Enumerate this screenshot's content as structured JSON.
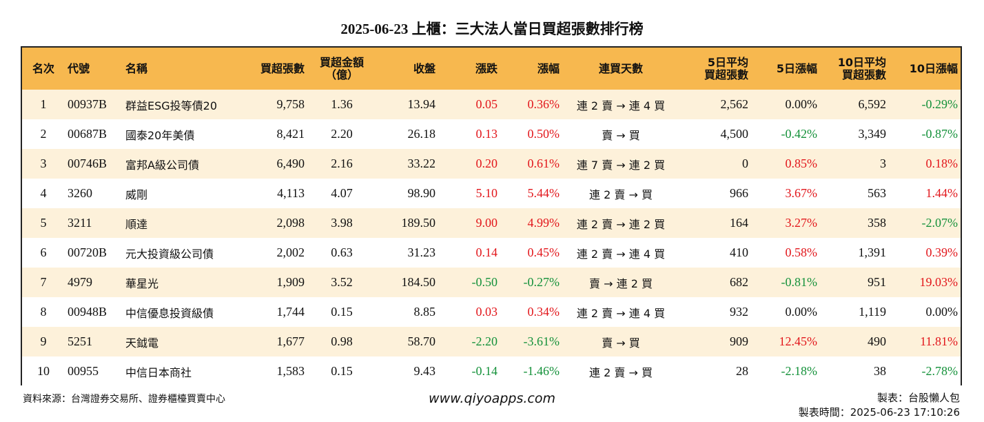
{
  "title": "2025-06-23 上櫃：三大法人當日買超張數排行榜",
  "headers": {
    "rank": "名次",
    "code": "代號",
    "name": "名稱",
    "buy_lots": "買超張數",
    "buy_amount_1": "買超金額",
    "buy_amount_2": "（億）",
    "close": "收盤",
    "change": "漲跌",
    "pct": "漲幅",
    "streak": "連買天數",
    "avg5_1": "5日平均",
    "avg5_2": "買超張數",
    "pct5": "5日漲幅",
    "avg10_1": "10日平均",
    "avg10_2": "買超張數",
    "pct10": "10日漲幅"
  },
  "colors": {
    "header_bg": "#f7b84f",
    "row_stripe": "#fdf1da",
    "up": "#e2161b",
    "down": "#14913a"
  },
  "rows": [
    {
      "rank": "1",
      "code": "00937B",
      "name": "群益ESG投等債20",
      "buy_lots": "9,758",
      "amount": "1.36",
      "close": "13.94",
      "change": "0.05",
      "change_dir": "up",
      "pct": "0.36%",
      "pct_dir": "up",
      "streak": "連 2 賣 → 連 4 買",
      "avg5": "2,562",
      "pct5": "0.00%",
      "pct5_dir": "flat",
      "avg10": "6,592",
      "pct10": "-0.29%",
      "pct10_dir": "down"
    },
    {
      "rank": "2",
      "code": "00687B",
      "name": "國泰20年美債",
      "buy_lots": "8,421",
      "amount": "2.20",
      "close": "26.18",
      "change": "0.13",
      "change_dir": "up",
      "pct": "0.50%",
      "pct_dir": "up",
      "streak": "賣 → 買",
      "avg5": "4,500",
      "pct5": "-0.42%",
      "pct5_dir": "down",
      "avg10": "3,349",
      "pct10": "-0.87%",
      "pct10_dir": "down"
    },
    {
      "rank": "3",
      "code": "00746B",
      "name": "富邦A級公司債",
      "buy_lots": "6,490",
      "amount": "2.16",
      "close": "33.22",
      "change": "0.20",
      "change_dir": "up",
      "pct": "0.61%",
      "pct_dir": "up",
      "streak": "連 7 賣 → 連 2 買",
      "avg5": "0",
      "pct5": "0.85%",
      "pct5_dir": "up",
      "avg10": "3",
      "pct10": "0.18%",
      "pct10_dir": "up"
    },
    {
      "rank": "4",
      "code": "3260",
      "name": "威剛",
      "buy_lots": "4,113",
      "amount": "4.07",
      "close": "98.90",
      "change": "5.10",
      "change_dir": "up",
      "pct": "5.44%",
      "pct_dir": "up",
      "streak": "連 2 賣 → 買",
      "avg5": "966",
      "pct5": "3.67%",
      "pct5_dir": "up",
      "avg10": "563",
      "pct10": "1.44%",
      "pct10_dir": "up"
    },
    {
      "rank": "5",
      "code": "3211",
      "name": "順達",
      "buy_lots": "2,098",
      "amount": "3.98",
      "close": "189.50",
      "change": "9.00",
      "change_dir": "up",
      "pct": "4.99%",
      "pct_dir": "up",
      "streak": "連 2 賣 → 連 2 買",
      "avg5": "164",
      "pct5": "3.27%",
      "pct5_dir": "up",
      "avg10": "358",
      "pct10": "-2.07%",
      "pct10_dir": "down"
    },
    {
      "rank": "6",
      "code": "00720B",
      "name": "元大投資級公司債",
      "buy_lots": "2,002",
      "amount": "0.63",
      "close": "31.23",
      "change": "0.14",
      "change_dir": "up",
      "pct": "0.45%",
      "pct_dir": "up",
      "streak": "連 2 賣 → 連 4 買",
      "avg5": "410",
      "pct5": "0.58%",
      "pct5_dir": "up",
      "avg10": "1,391",
      "pct10": "0.39%",
      "pct10_dir": "up"
    },
    {
      "rank": "7",
      "code": "4979",
      "name": "華星光",
      "buy_lots": "1,909",
      "amount": "3.52",
      "close": "184.50",
      "change": "-0.50",
      "change_dir": "down",
      "pct": "-0.27%",
      "pct_dir": "down",
      "streak": "賣 → 連 2 買",
      "avg5": "682",
      "pct5": "-0.81%",
      "pct5_dir": "down",
      "avg10": "951",
      "pct10": "19.03%",
      "pct10_dir": "up"
    },
    {
      "rank": "8",
      "code": "00948B",
      "name": "中信優息投資級債",
      "buy_lots": "1,744",
      "amount": "0.15",
      "close": "8.85",
      "change": "0.03",
      "change_dir": "up",
      "pct": "0.34%",
      "pct_dir": "up",
      "streak": "連 2 賣 → 連 4 買",
      "avg5": "932",
      "pct5": "0.00%",
      "pct5_dir": "flat",
      "avg10": "1,119",
      "pct10": "0.00%",
      "pct10_dir": "flat"
    },
    {
      "rank": "9",
      "code": "5251",
      "name": "天鉞電",
      "buy_lots": "1,677",
      "amount": "0.98",
      "close": "58.70",
      "change": "-2.20",
      "change_dir": "down",
      "pct": "-3.61%",
      "pct_dir": "down",
      "streak": "賣 → 買",
      "avg5": "909",
      "pct5": "12.45%",
      "pct5_dir": "up",
      "avg10": "490",
      "pct10": "11.81%",
      "pct10_dir": "up"
    },
    {
      "rank": "10",
      "code": "00955",
      "name": "中信日本商社",
      "buy_lots": "1,583",
      "amount": "0.15",
      "close": "9.43",
      "change": "-0.14",
      "change_dir": "down",
      "pct": "-1.46%",
      "pct_dir": "down",
      "streak": "連 2 賣 → 買",
      "avg5": "28",
      "pct5": "-2.18%",
      "pct5_dir": "down",
      "avg10": "38",
      "pct10": "-2.78%",
      "pct10_dir": "down"
    }
  ],
  "footer": {
    "source": "資料來源：台灣證券交易所、證券櫃檯買賣中心",
    "website": "www.qiyoapps.com",
    "maker": "製表：台股懶人包",
    "made_time": "製表時間：2025-06-23 17:10:26"
  }
}
